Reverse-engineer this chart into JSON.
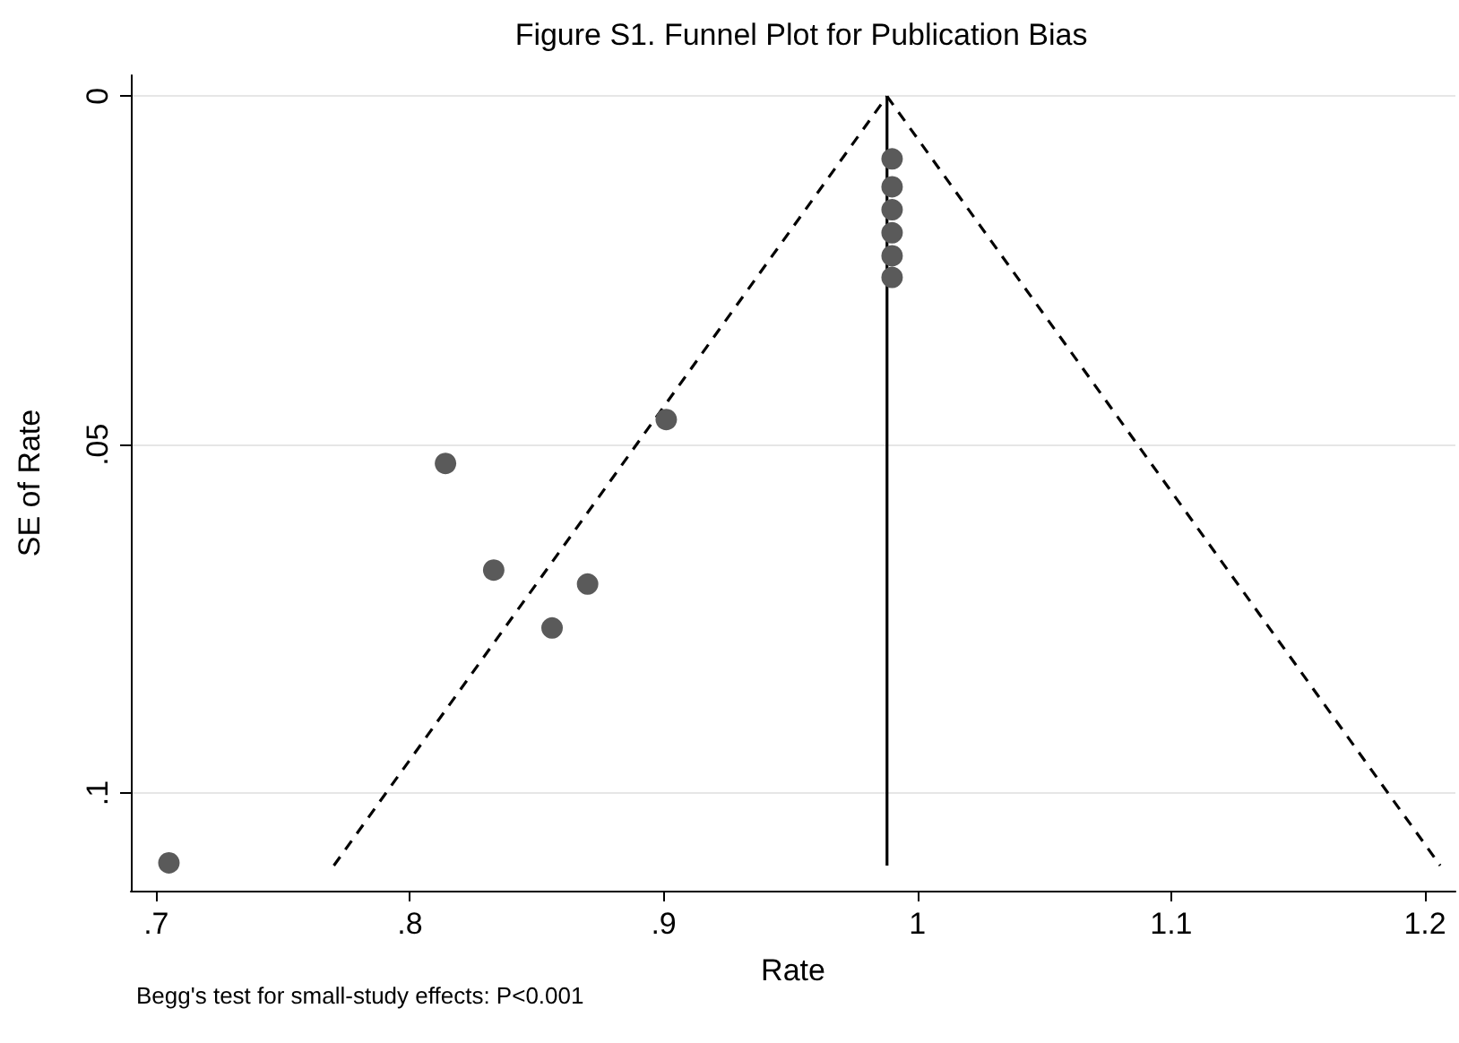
{
  "chart_data": {
    "type": "scatter",
    "title": "Figure S1. Funnel Plot for Publication Bias",
    "xlabel": "Rate",
    "ylabel": "SE of Rate",
    "annotations": [
      "Begg's test for small-study effects: P<0.001"
    ],
    "series": [
      {
        "color": "#5a5a5a",
        "marker": "circle",
        "x": [
          0.814,
          0.901,
          0.833,
          0.87,
          0.856,
          0.705,
          0.99,
          0.99,
          0.99,
          0.99,
          0.99,
          0.99
        ],
        "values": [
          0.0527,
          0.0464,
          0.068,
          0.07,
          0.0763,
          0.11,
          0.009,
          0.013,
          0.0163,
          0.0196,
          0.0229,
          0.026
        ]
      },
      {
        "type": "line",
        "color": "#000000",
        "line_style": "dashed",
        "marker": "none",
        "x": [
          0.77,
          0.988
        ],
        "values": [
          0.1104,
          0
        ]
      },
      {
        "type": "line",
        "color": "#000000",
        "line_style": "dashed",
        "marker": "none",
        "x": [
          0.988,
          1.206
        ],
        "values": [
          0,
          0.1104
        ]
      },
      {
        "type": "line",
        "color": "#000000",
        "line_style": "solid",
        "marker": "none",
        "x": [
          0.988,
          0.988
        ],
        "values": [
          0,
          0.1104
        ]
      }
    ],
    "xlim": [
      0.69,
      1.212
    ],
    "xticks": [
      {
        "value": 0.7,
        "label": ".7"
      },
      {
        "value": 0.8,
        "label": ".8"
      },
      {
        "value": 0.9,
        "label": ".9"
      },
      1,
      {
        "value": 1.1,
        "label": "1.1"
      },
      {
        "value": 1.2,
        "label": "1.2"
      }
    ],
    "ylim": [
      0.114,
      -0.003
    ],
    "yticks": [
      0,
      {
        "value": 0.05,
        "label": ".05"
      },
      {
        "value": 0.1,
        "label": ".1"
      }
    ],
    "grid": "y"
  }
}
